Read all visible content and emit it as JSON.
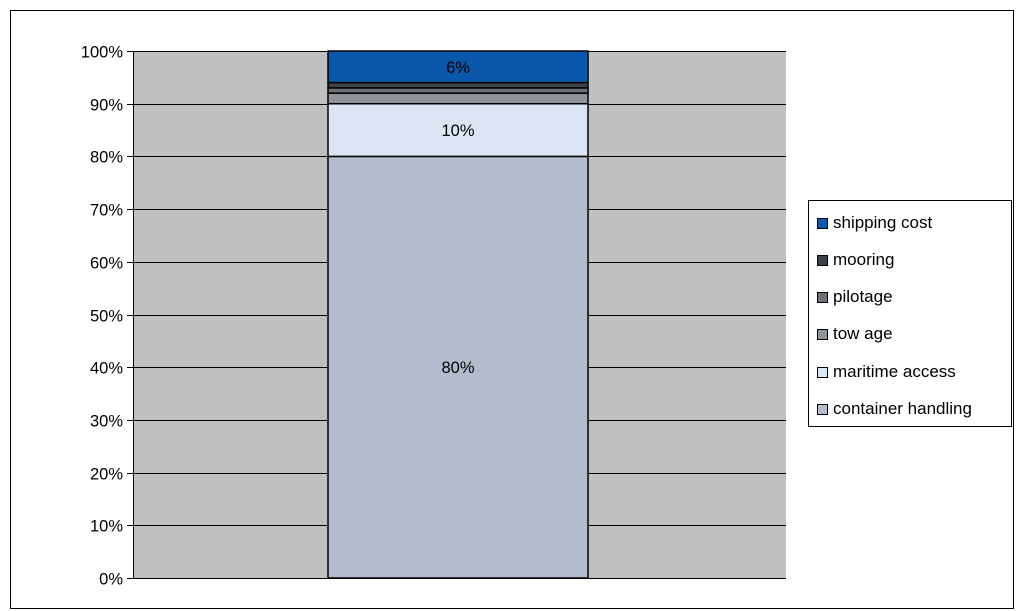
{
  "chart_data": {
    "type": "bar",
    "stacked": true,
    "percent_stacked": true,
    "categories": [
      ""
    ],
    "series": [
      {
        "name": "container handling",
        "values": [
          80
        ],
        "color": "#b3bccc",
        "label": "80%"
      },
      {
        "name": "maritime access",
        "values": [
          10
        ],
        "color": "#dce5f3",
        "label": "10%"
      },
      {
        "name": "tow age",
        "values": [
          2
        ],
        "color": "#8f939a",
        "label": ""
      },
      {
        "name": "pilotage",
        "values": [
          1
        ],
        "color": "#6e7277",
        "label": ""
      },
      {
        "name": "mooring",
        "values": [
          1
        ],
        "color": "#3d4147",
        "label": ""
      },
      {
        "name": "shipping cost",
        "values": [
          6
        ],
        "color": "#0a58ab",
        "label": "6%"
      }
    ],
    "y_ticks": [
      "0%",
      "10%",
      "20%",
      "30%",
      "40%",
      "50%",
      "60%",
      "70%",
      "80%",
      "90%",
      "100%"
    ],
    "ylim": [
      0,
      100
    ],
    "title": "",
    "xlabel": "",
    "ylabel": "",
    "grid": true,
    "plot_background": "#c0c0c0",
    "legend": {
      "position": "right",
      "order": [
        "shipping cost",
        "mooring",
        "pilotage",
        "tow age",
        "maritime access",
        "container handling"
      ]
    }
  }
}
